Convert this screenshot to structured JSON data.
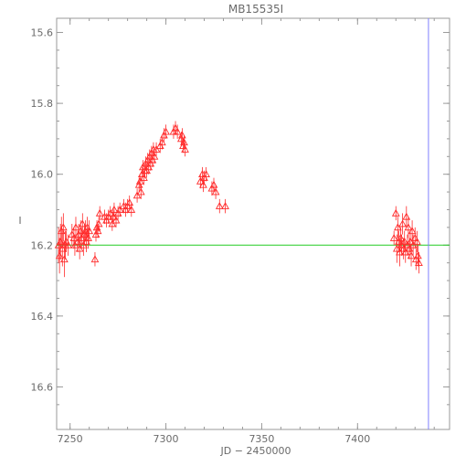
{
  "chart_data": {
    "type": "scatter",
    "title": "MB15535I",
    "xlabel": "JD − 2450000",
    "ylabel": "I",
    "xlim": [
      7243,
      7448
    ],
    "ylim": [
      16.72,
      15.56
    ],
    "y_inverted": true,
    "x_ticks": [
      7250,
      7300,
      7350,
      7400
    ],
    "y_ticks": [
      15.6,
      15.8,
      16.0,
      16.2,
      16.4,
      16.6
    ],
    "x_tick_labels": [
      "7250",
      "7300",
      "7350",
      "7400"
    ],
    "y_tick_labels": [
      "15.6",
      "15.8",
      "16.0",
      "16.2",
      "16.4",
      "16.6"
    ],
    "grid": false,
    "legend": "none",
    "colors": {
      "frame": "#9a9a9a",
      "points": "#ff2a2a",
      "baseline": "#22cc22",
      "vline": "#8080ff"
    },
    "baseline": {
      "y": 16.2
    },
    "vline": {
      "x": 7437
    },
    "series": [
      {
        "marker": "triangle",
        "points": [
          [
            7244,
            16.2,
            0.05
          ],
          [
            7244.5,
            16.23,
            0.05
          ],
          [
            7245,
            16.19,
            0.05
          ],
          [
            7245.5,
            16.16,
            0.04
          ],
          [
            7246,
            16.21,
            0.05
          ],
          [
            7246.5,
            16.15,
            0.04
          ],
          [
            7247,
            16.24,
            0.05
          ],
          [
            7247.5,
            16.2,
            0.04
          ],
          [
            7248,
            16.19,
            0.03
          ],
          [
            7249,
            16.2,
            0.03
          ],
          [
            7251,
            16.17,
            0.03
          ],
          [
            7252,
            16.18,
            0.03
          ],
          [
            7252.5,
            16.2,
            0.03
          ],
          [
            7253,
            16.15,
            0.03
          ],
          [
            7254,
            16.19,
            0.03
          ],
          [
            7254.5,
            16.17,
            0.03
          ],
          [
            7255,
            16.21,
            0.03
          ],
          [
            7255.5,
            16.16,
            0.03
          ],
          [
            7256,
            16.18,
            0.03
          ],
          [
            7256.5,
            16.14,
            0.03
          ],
          [
            7257,
            16.2,
            0.03
          ],
          [
            7257.5,
            16.17,
            0.03
          ],
          [
            7258,
            16.16,
            0.03
          ],
          [
            7258.5,
            16.19,
            0.03
          ],
          [
            7259,
            16.15,
            0.03
          ],
          [
            7259.5,
            16.18,
            0.03
          ],
          [
            7260,
            16.16,
            0.03
          ],
          [
            7263,
            16.24,
            0.02
          ],
          [
            7263.5,
            16.17,
            0.02
          ],
          [
            7264,
            16.15,
            0.02
          ],
          [
            7264.5,
            16.16,
            0.02
          ],
          [
            7265,
            16.14,
            0.02
          ],
          [
            7265.5,
            16.11,
            0.02
          ],
          [
            7268,
            16.12,
            0.02
          ],
          [
            7269,
            16.13,
            0.02
          ],
          [
            7270,
            16.12,
            0.02
          ],
          [
            7271,
            16.11,
            0.02
          ],
          [
            7272,
            16.14,
            0.02
          ],
          [
            7272.5,
            16.12,
            0.02
          ],
          [
            7273,
            16.1,
            0.02
          ],
          [
            7274,
            16.13,
            0.02
          ],
          [
            7275,
            16.11,
            0.02
          ],
          [
            7276,
            16.1,
            0.02
          ],
          [
            7278,
            16.09,
            0.02
          ],
          [
            7279,
            16.1,
            0.02
          ],
          [
            7280,
            16.09,
            0.02
          ],
          [
            7281,
            16.08,
            0.02
          ],
          [
            7282,
            16.1,
            0.02
          ],
          [
            7285,
            16.06,
            0.02
          ],
          [
            7286,
            16.03,
            0.02
          ],
          [
            7286.5,
            16.02,
            0.02
          ],
          [
            7287,
            16.05,
            0.02
          ],
          [
            7287.5,
            16.0,
            0.02
          ],
          [
            7288,
            15.98,
            0.02
          ],
          [
            7288.5,
            16.01,
            0.02
          ],
          [
            7289,
            15.99,
            0.02
          ],
          [
            7289.5,
            15.97,
            0.02
          ],
          [
            7290,
            15.99,
            0.02
          ],
          [
            7290.5,
            15.96,
            0.02
          ],
          [
            7291,
            15.98,
            0.02
          ],
          [
            7291.5,
            15.95,
            0.02
          ],
          [
            7292,
            15.97,
            0.02
          ],
          [
            7292.5,
            15.94,
            0.02
          ],
          [
            7293,
            15.96,
            0.02
          ],
          [
            7293.5,
            15.93,
            0.02
          ],
          [
            7294,
            15.95,
            0.02
          ],
          [
            7295,
            15.93,
            0.02
          ],
          [
            7297,
            15.92,
            0.02
          ],
          [
            7298,
            15.91,
            0.02
          ],
          [
            7299,
            15.89,
            0.02
          ],
          [
            7300,
            15.88,
            0.02
          ],
          [
            7304,
            15.88,
            0.02
          ],
          [
            7305,
            15.87,
            0.02
          ],
          [
            7306,
            15.88,
            0.02
          ],
          [
            7308,
            15.9,
            0.02
          ],
          [
            7308.5,
            15.89,
            0.02
          ],
          [
            7309,
            15.92,
            0.02
          ],
          [
            7309.5,
            15.91,
            0.02
          ],
          [
            7310,
            15.93,
            0.02
          ],
          [
            7318,
            16.02,
            0.02
          ],
          [
            7319,
            16.0,
            0.02
          ],
          [
            7319.5,
            16.03,
            0.02
          ],
          [
            7320,
            16.01,
            0.02
          ],
          [
            7321,
            16.0,
            0.02
          ],
          [
            7324,
            16.04,
            0.02
          ],
          [
            7325,
            16.03,
            0.02
          ],
          [
            7326,
            16.05,
            0.02
          ],
          [
            7328,
            16.09,
            0.02
          ],
          [
            7331,
            16.09,
            0.02
          ],
          [
            7419,
            16.18,
            0.02
          ],
          [
            7420,
            16.11,
            0.02
          ],
          [
            7420.5,
            16.21,
            0.04
          ],
          [
            7421,
            16.15,
            0.03
          ],
          [
            7421.5,
            16.19,
            0.03
          ],
          [
            7422,
            16.22,
            0.04
          ],
          [
            7422.5,
            16.18,
            0.03
          ],
          [
            7423,
            16.2,
            0.03
          ],
          [
            7423.5,
            16.14,
            0.03
          ],
          [
            7424,
            16.21,
            0.03
          ],
          [
            7424.5,
            16.19,
            0.03
          ],
          [
            7425,
            16.22,
            0.03
          ],
          [
            7425.5,
            16.12,
            0.03
          ],
          [
            7426,
            16.2,
            0.03
          ],
          [
            7426.5,
            16.15,
            0.03
          ],
          [
            7427,
            16.21,
            0.03
          ],
          [
            7427.5,
            16.19,
            0.03
          ],
          [
            7428,
            16.23,
            0.03
          ],
          [
            7428.5,
            16.16,
            0.03
          ],
          [
            7429,
            16.2,
            0.03
          ],
          [
            7430,
            16.18,
            0.03
          ],
          [
            7430.5,
            16.24,
            0.03
          ],
          [
            7431,
            16.19,
            0.03
          ],
          [
            7431.5,
            16.23,
            0.03
          ],
          [
            7432,
            16.25,
            0.03
          ]
        ]
      }
    ]
  }
}
